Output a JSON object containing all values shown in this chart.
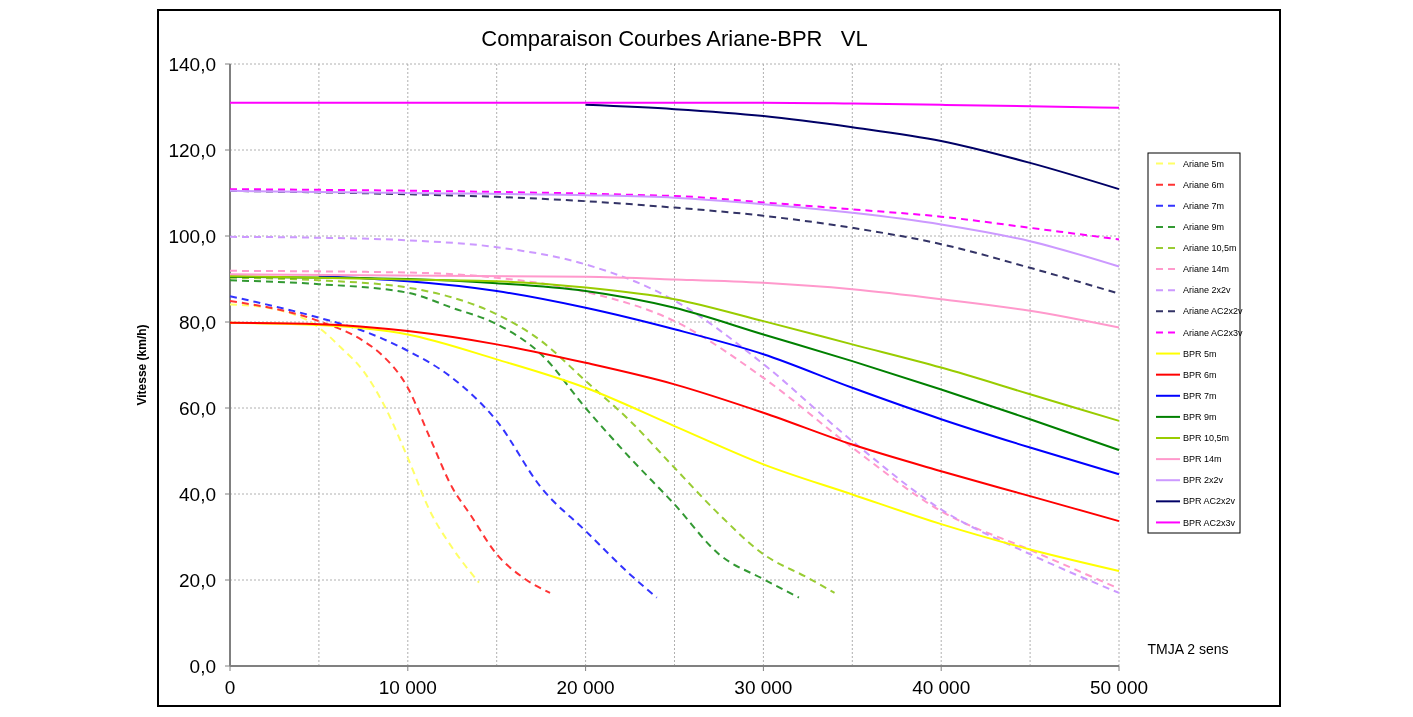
{
  "chart_data": {
    "type": "line",
    "title": "Comparaison Courbes Ariane-BPR   VL",
    "ylabel": "Vitesse (km/h)",
    "xlabel": "TMJA 2 sens",
    "xlim": [
      0,
      50000
    ],
    "xticks": [
      {
        "value": 0,
        "label": "0"
      },
      {
        "value": 10000,
        "label": "10 000"
      },
      {
        "value": 20000,
        "label": "20 000"
      },
      {
        "value": 30000,
        "label": "30 000"
      },
      {
        "value": 40000,
        "label": "40 000"
      },
      {
        "value": 50000,
        "label": "50 000"
      }
    ],
    "ylim": [
      0,
      140
    ],
    "yticks": [
      {
        "value": 0,
        "label": "0,0"
      },
      {
        "value": 20,
        "label": "20,0"
      },
      {
        "value": 40,
        "label": "40,0"
      },
      {
        "value": 60,
        "label": "60,0"
      },
      {
        "value": 80,
        "label": "80,0"
      },
      {
        "value": 100,
        "label": "100,0"
      },
      {
        "value": 120,
        "label": "120,0"
      },
      {
        "value": 140,
        "label": "140,0"
      }
    ],
    "grid": true,
    "legend": "right",
    "marker": "none",
    "series": [
      {
        "name": "Ariane 5m",
        "color": "#ffff66",
        "line_style": "dashed",
        "x": [
          0,
          2500,
          5000,
          6250,
          7500,
          8750,
          10000,
          11250,
          12500,
          14000
        ],
        "values": [
          84.1,
          83,
          78.7,
          74,
          68.6,
          60,
          48.4,
          36,
          27.5,
          19.4
        ]
      },
      {
        "name": "Ariane 6m",
        "color": "#ff3333",
        "line_style": "dashed",
        "x": [
          0,
          5000,
          7500,
          8500,
          10000,
          11250,
          12500,
          13500,
          15000,
          16500,
          18000
        ],
        "values": [
          84.9,
          80.2,
          75.6,
          72.5,
          64.7,
          53,
          41.5,
          35.3,
          26,
          20.5,
          17
        ]
      },
      {
        "name": "Ariane 7m",
        "color": "#3333ff",
        "line_style": "dashed",
        "x": [
          0,
          5000,
          7500,
          10000,
          12500,
          15000,
          17500,
          20000,
          22500,
          24000
        ],
        "values": [
          86,
          81,
          77.9,
          73.3,
          67,
          57,
          41.5,
          31.4,
          21.3,
          15.9
        ]
      },
      {
        "name": "Ariane 9m",
        "color": "#339933",
        "line_style": "dashed",
        "x": [
          0,
          5000,
          10000,
          12500,
          15000,
          17500,
          20000,
          22500,
          25000,
          27500,
          30000,
          32000
        ],
        "values": [
          89.7,
          88.8,
          86.8,
          83.3,
          79.5,
          72.5,
          60,
          48.4,
          37.6,
          26,
          20.2,
          15.9
        ]
      },
      {
        "name": "Ariane 10,5m",
        "color": "#99cc33",
        "line_style": "dashed",
        "x": [
          0,
          5000,
          10000,
          12500,
          15000,
          17500,
          20000,
          22500,
          25000,
          27500,
          30000,
          32500,
          34000
        ],
        "values": [
          90.3,
          89.7,
          88,
          85.7,
          81.8,
          75.6,
          66.3,
          57,
          46.1,
          35.3,
          26,
          20.5,
          17
        ]
      },
      {
        "name": "Ariane 14m",
        "color": "#ff99cc",
        "line_style": "dashed",
        "x": [
          0,
          10000,
          15000,
          20000,
          25000,
          30000,
          35000,
          40000,
          45000,
          50000
        ],
        "values": [
          91.9,
          91.5,
          90.3,
          87,
          80.2,
          67,
          50.8,
          36,
          27,
          18
        ]
      },
      {
        "name": "Ariane 2x2v",
        "color": "#cc99ff",
        "line_style": "dashed",
        "x": [
          0,
          5000,
          10000,
          15000,
          20000,
          25000,
          30000,
          35000,
          40000,
          45000,
          50000
        ],
        "values": [
          99.8,
          99.6,
          99,
          97.4,
          93.4,
          85,
          70.2,
          52.3,
          36.4,
          26,
          17
        ]
      },
      {
        "name": "Ariane AC2x2v",
        "color": "#333366",
        "line_style": "dashed",
        "x": [
          0,
          10000,
          15000,
          20000,
          25000,
          30000,
          35000,
          40000,
          45000,
          50000
        ],
        "values": [
          110.5,
          109.7,
          109.1,
          108.1,
          106.6,
          104.7,
          101.9,
          98.1,
          92.6,
          86.6
        ]
      },
      {
        "name": "Ariane AC2x3v",
        "color": "#ff00ff",
        "line_style": "dashed",
        "x": [
          0,
          25000,
          30000,
          35000,
          40000,
          45000,
          50000
        ],
        "values": [
          110.9,
          109.3,
          107.8,
          106.2,
          104.5,
          101.9,
          99.2
        ]
      },
      {
        "name": "BPR 5m",
        "color": "#ffff00",
        "line_style": "solid",
        "x": [
          0,
          5000,
          10000,
          15000,
          20000,
          25000,
          30000,
          35000,
          40000,
          45000,
          50000
        ],
        "values": [
          79.8,
          79.3,
          77.1,
          71.3,
          64.7,
          55.8,
          46.9,
          39.9,
          33,
          27.1,
          22.1
        ]
      },
      {
        "name": "BPR 6m",
        "color": "#ff0000",
        "line_style": "solid",
        "x": [
          0,
          5000,
          10000,
          15000,
          20000,
          25000,
          30000,
          35000,
          40000,
          45000,
          50000
        ],
        "values": [
          79.8,
          79.5,
          77.9,
          74.8,
          70.5,
          65.5,
          58.9,
          51.5,
          45.3,
          39.5,
          33.7
        ]
      },
      {
        "name": "BPR 7m",
        "color": "#0000ff",
        "line_style": "solid",
        "x": [
          5000,
          15000,
          20000,
          25000,
          30000,
          35000,
          40000,
          45000,
          50000
        ],
        "values": [
          90.7,
          87.2,
          83.3,
          78.3,
          72.5,
          64.7,
          57.4,
          50.8,
          44.6
        ]
      },
      {
        "name": "BPR 9m",
        "color": "#008000",
        "line_style": "solid",
        "x": [
          0,
          10000,
          15000,
          20000,
          25000,
          30000,
          35000,
          40000,
          45000,
          50000
        ],
        "values": [
          90.5,
          90,
          89,
          87.2,
          83.3,
          77.1,
          70.9,
          64.3,
          57.4,
          50.2
        ]
      },
      {
        "name": "BPR 10,5m",
        "color": "#99cc00",
        "line_style": "solid",
        "x": [
          0,
          10000,
          15000,
          20000,
          25000,
          30000,
          35000,
          40000,
          45000,
          50000
        ],
        "values": [
          90.7,
          89.9,
          89.5,
          88,
          85.3,
          80.2,
          74.8,
          69.4,
          63.2,
          57
        ]
      },
      {
        "name": "BPR 14m",
        "color": "#ff99cc",
        "line_style": "solid",
        "x": [
          0,
          20000,
          25000,
          30000,
          35000,
          40000,
          45000,
          50000
        ],
        "values": [
          91.1,
          90.5,
          89.9,
          89.1,
          87.6,
          85.3,
          82.6,
          78.7
        ]
      },
      {
        "name": "BPR 2x2v",
        "color": "#cc99ff",
        "line_style": "solid",
        "x": [
          0,
          10000,
          20000,
          25000,
          30000,
          35000,
          40000,
          45000,
          50000
        ],
        "values": [
          110.5,
          110,
          109.5,
          108.9,
          107.4,
          105.4,
          102.7,
          98.8,
          92.9
        ]
      },
      {
        "name": "BPR AC2x2v",
        "color": "#000066",
        "line_style": "solid",
        "x": [
          20000,
          25000,
          30000,
          35000,
          40000,
          45000,
          50000
        ],
        "values": [
          130.5,
          129.5,
          127.9,
          125.3,
          122.1,
          117,
          110.9
        ]
      },
      {
        "name": "BPR AC2x3v",
        "color": "#ff00ff",
        "line_style": "solid",
        "x": [
          0,
          5000,
          10000,
          15000,
          20000,
          25000,
          30000,
          35000,
          40000,
          45000,
          50000
        ],
        "values": [
          131,
          131,
          131,
          131,
          131,
          131,
          131,
          130.8,
          130.5,
          130.2,
          129.8
        ]
      }
    ]
  }
}
